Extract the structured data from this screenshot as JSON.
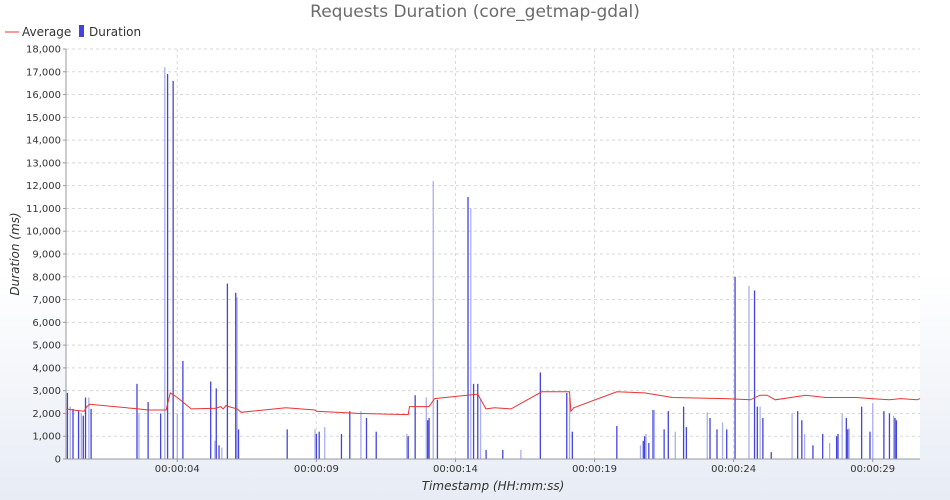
{
  "chart_data": {
    "type": "bar",
    "title": "Requests Duration (core_getmap-gdal)",
    "xlabel": "Timestamp (HH:mm:ss)",
    "ylabel": "Duration (ms)",
    "ylim": [
      0,
      18000
    ],
    "yticks": [
      "0",
      "1,000",
      "2,000",
      "3,000",
      "4,000",
      "5,000",
      "6,000",
      "7,000",
      "8,000",
      "9,000",
      "10,000",
      "11,000",
      "12,000",
      "13,000",
      "14,000",
      "15,000",
      "16,000",
      "17,000",
      "18,000"
    ],
    "xlim": [
      0,
      30.7
    ],
    "xticks": [
      {
        "t": 4,
        "label": "00:00:04"
      },
      {
        "t": 9,
        "label": "00:00:09"
      },
      {
        "t": 14,
        "label": "00:00:14"
      },
      {
        "t": 19,
        "label": "00:00:19"
      },
      {
        "t": 24,
        "label": "00:00:24"
      },
      {
        "t": 29,
        "label": "00:00:29"
      }
    ],
    "legend": "top-left",
    "grid": true,
    "colors": {
      "average": "#ee3333",
      "duration": "#4444dd",
      "duration_light": "#aab0ee"
    },
    "series": [
      {
        "name": "Duration",
        "kind": "bar",
        "t": [
          0.05,
          0.15,
          0.25,
          0.45,
          0.55,
          0.62,
          0.7,
          0.82,
          0.9,
          2.55,
          2.62,
          2.95,
          3.4,
          3.55,
          3.65,
          3.85,
          4.0,
          4.2,
          5.2,
          5.35,
          5.4,
          5.5,
          5.6,
          5.8,
          6.1,
          6.15,
          6.2,
          7.95,
          8.95,
          9.0,
          9.1,
          9.3,
          9.9,
          10.2,
          10.6,
          10.8,
          11.15,
          12.25,
          12.3,
          12.55,
          12.95,
          13.0,
          13.05,
          13.2,
          13.35,
          14.45,
          14.55,
          14.65,
          14.8,
          14.9,
          15.1,
          15.7,
          16.35,
          17.05,
          18.0,
          18.1,
          18.2,
          19.8,
          20.65,
          20.75,
          20.8,
          20.85,
          20.95,
          21.1,
          21.15,
          21.5,
          21.65,
          21.9,
          22.2,
          22.3,
          23.05,
          23.15,
          23.4,
          23.6,
          23.75,
          24.05,
          24.55,
          24.75,
          24.85,
          24.95,
          25.05,
          25.35,
          26.1,
          26.3,
          26.45,
          26.55,
          26.85,
          27.2,
          27.45,
          27.7,
          27.75,
          27.9,
          28.05,
          28.1,
          28.15,
          28.6,
          28.9,
          29.0,
          29.4,
          29.6,
          29.75,
          29.8,
          29.85
        ],
        "values": [
          2900,
          2300,
          2200,
          2100,
          2000,
          1900,
          2700,
          2700,
          2200,
          3300,
          2000,
          2500,
          2000,
          17200,
          16900,
          16600,
          2000,
          4300,
          3400,
          800,
          3100,
          600,
          500,
          7700,
          7300,
          7100,
          1300,
          1300,
          1300,
          1100,
          1200,
          1400,
          1100,
          2100,
          2100,
          1800,
          1200,
          1100,
          1000,
          2800,
          2700,
          1700,
          1800,
          12200,
          2600,
          11500,
          11000,
          3300,
          3300,
          2600,
          400,
          400,
          400,
          3800,
          2900,
          2700,
          1200,
          1450,
          600,
          800,
          1000,
          1100,
          700,
          2150,
          2150,
          1300,
          2100,
          1200,
          2300,
          1400,
          2050,
          1800,
          1300,
          1600,
          1300,
          8000,
          7600,
          7400,
          2300,
          2300,
          1800,
          300,
          2000,
          2100,
          1700,
          1100,
          600,
          1100,
          700,
          1000,
          1100,
          2000,
          1800,
          1300,
          1350,
          2300,
          1200,
          2450,
          2100,
          2000,
          1900,
          1800,
          1700
        ]
      },
      {
        "name": "Average",
        "kind": "line",
        "t": [
          0.0,
          0.25,
          0.65,
          0.75,
          0.85,
          2.6,
          2.95,
          3.6,
          3.75,
          4.0,
          4.5,
          5.4,
          5.55,
          5.65,
          5.75,
          5.85,
          6.15,
          6.3,
          7.9,
          8.95,
          9.0,
          10.5,
          12.3,
          12.35,
          13.05,
          13.25,
          14.8,
          15.1,
          15.4,
          16.0,
          17.1,
          17.2,
          18.1,
          18.15,
          18.25,
          19.8,
          20.8,
          21.8,
          23.7,
          24.6,
          24.95,
          25.2,
          25.5,
          26.6,
          27.3,
          28.4,
          28.95,
          29.6,
          30.0,
          30.6,
          30.7
        ],
        "values": [
          2200,
          2150,
          2100,
          2300,
          2400,
          2200,
          2150,
          2150,
          2900,
          2700,
          2200,
          2230,
          2300,
          2200,
          2350,
          2300,
          2200,
          2050,
          2250,
          2150,
          2100,
          2000,
          1950,
          2300,
          2300,
          2650,
          2850,
          2200,
          2250,
          2200,
          2950,
          2950,
          2950,
          2100,
          2250,
          2950,
          2900,
          2700,
          2650,
          2600,
          2800,
          2800,
          2600,
          2800,
          2700,
          2700,
          2650,
          2600,
          2650,
          2600,
          2650
        ]
      }
    ]
  }
}
